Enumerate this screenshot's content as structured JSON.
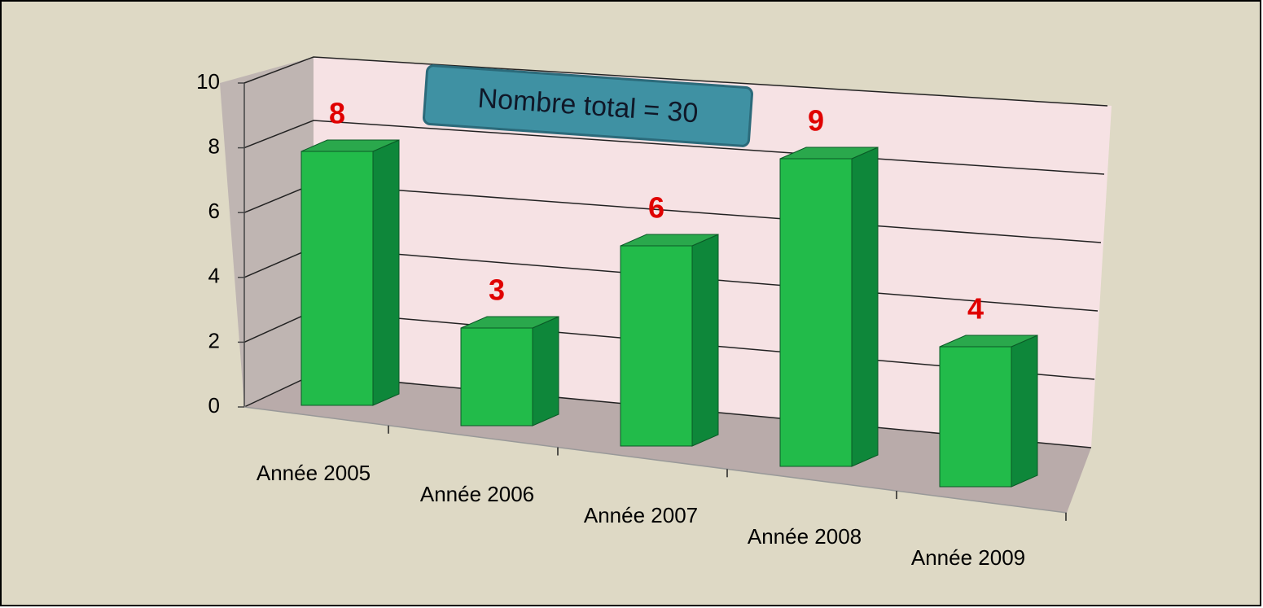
{
  "chart_data": {
    "type": "bar3d",
    "annotation": "Nombre total = 30",
    "categories": [
      "Année 2005",
      "Année 2006",
      "Année 2007",
      "Année 2008",
      "Année 2009"
    ],
    "values": [
      8,
      3,
      6,
      9,
      4
    ],
    "color": "#22bb4a",
    "label_color": "#e00000",
    "ylim": [
      0,
      10
    ],
    "yticks": [
      0,
      2,
      4,
      6,
      8,
      10
    ],
    "grid": true
  }
}
